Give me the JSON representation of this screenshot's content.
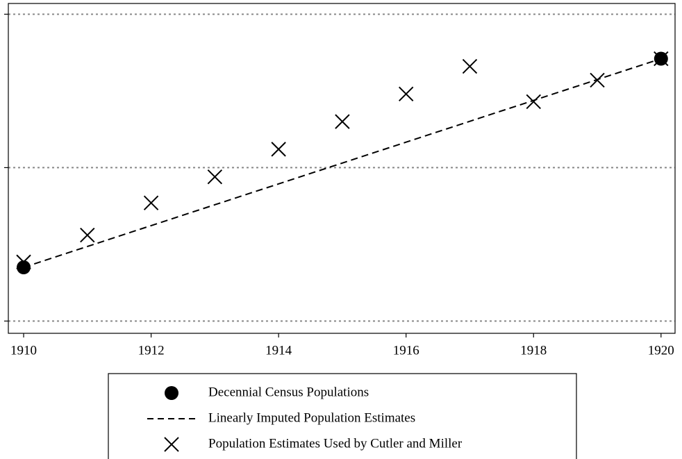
{
  "chart_data": {
    "type": "line",
    "x": [
      1910,
      1911,
      1912,
      1913,
      1914,
      1915,
      1916,
      1917,
      1918,
      1919,
      1920
    ],
    "series": [
      {
        "name": "Decennial Census Populations",
        "color": "#000000",
        "marker": "circle",
        "values": [
          0.35,
          null,
          null,
          null,
          null,
          null,
          null,
          null,
          null,
          null,
          1.71
        ]
      },
      {
        "name": "Linearly Imputed Population Estimates",
        "color": "#000000",
        "marker": "dash",
        "values": [
          0.35,
          0.486,
          0.622,
          0.758,
          0.894,
          1.03,
          1.166,
          1.302,
          1.438,
          1.574,
          1.71
        ]
      },
      {
        "name": "Population Estimates Used by Cutler and Miller",
        "color": "#000000",
        "marker": "x",
        "values": [
          0.385,
          0.56,
          0.77,
          0.94,
          1.12,
          1.3,
          1.48,
          1.66,
          1.43,
          1.57,
          1.71
        ]
      }
    ],
    "xlim": [
      1909.76,
      1920.22
    ],
    "xticks": [
      1910,
      1912,
      1914,
      1916,
      1918,
      1920
    ],
    "ylim": [
      -0.08,
      2.07
    ],
    "yticks": [
      0,
      1,
      2
    ],
    "grid": true,
    "legend": "bottom"
  }
}
